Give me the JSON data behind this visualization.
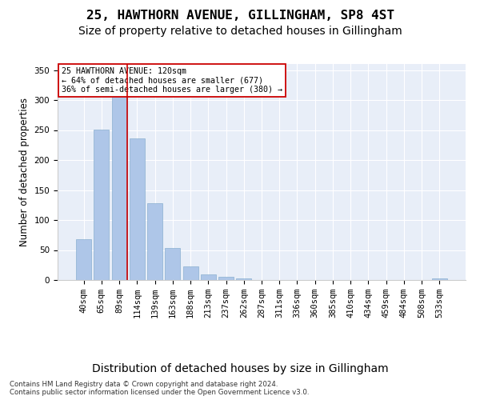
{
  "title": "25, HAWTHORN AVENUE, GILLINGHAM, SP8 4ST",
  "subtitle": "Size of property relative to detached houses in Gillingham",
  "xlabel": "Distribution of detached houses by size in Gillingham",
  "ylabel": "Number of detached properties",
  "categories": [
    "40sqm",
    "65sqm",
    "89sqm",
    "114sqm",
    "139sqm",
    "163sqm",
    "188sqm",
    "213sqm",
    "237sqm",
    "262sqm",
    "287sqm",
    "311sqm",
    "336sqm",
    "360sqm",
    "385sqm",
    "410sqm",
    "434sqm",
    "459sqm",
    "484sqm",
    "508sqm",
    "533sqm"
  ],
  "values": [
    68,
    251,
    330,
    236,
    128,
    53,
    23,
    9,
    5,
    3,
    0,
    0,
    0,
    0,
    0,
    0,
    0,
    0,
    0,
    0,
    3
  ],
  "bar_color": "#aec6e8",
  "bar_edge_color": "#8ab0d0",
  "bg_color": "#e8eef8",
  "grid_color": "#ffffff",
  "vline_color": "#cc0000",
  "annotation_text": "25 HAWTHORN AVENUE: 120sqm\n← 64% of detached houses are smaller (677)\n36% of semi-detached houses are larger (380) →",
  "annotation_box_color": "#ffffff",
  "annotation_box_edge": "#cc0000",
  "footer1": "Contains HM Land Registry data © Crown copyright and database right 2024.",
  "footer2": "Contains public sector information licensed under the Open Government Licence v3.0.",
  "ylim": [
    0,
    360
  ],
  "title_fontsize": 11.5,
  "subtitle_fontsize": 10,
  "ylabel_fontsize": 8.5,
  "xlabel_fontsize": 10,
  "tick_fontsize": 7.5,
  "footer_fontsize": 6.2
}
